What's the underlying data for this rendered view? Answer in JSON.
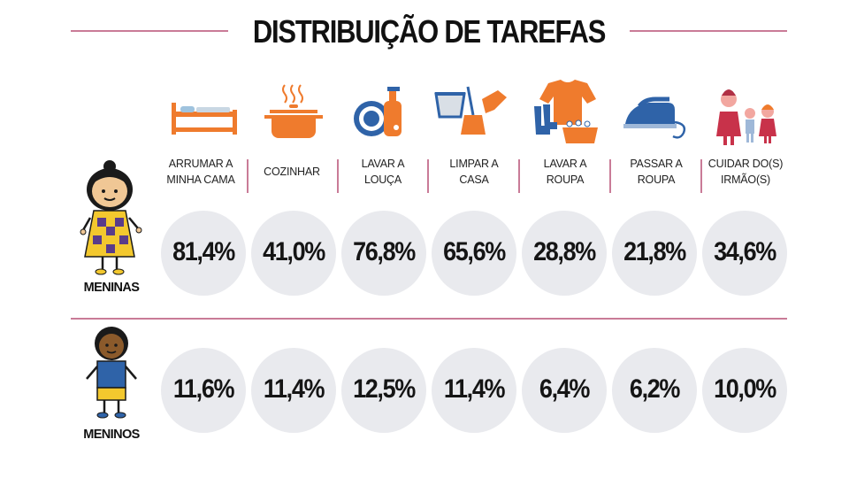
{
  "title": "DISTRIBUIÇÃO DE TAREFAS",
  "colors": {
    "accent_line": "#c97b97",
    "icon_orange": "#ef7b2d",
    "icon_blue": "#2f63a8",
    "circle_bg": "#e9eaee"
  },
  "groups": [
    {
      "label": "MENINAS"
    },
    {
      "label": "MENINOS"
    }
  ],
  "tasks": [
    {
      "label_line1": "ARRUMAR A",
      "label_line2": "MINHA CAMA",
      "icon": "bed-icon"
    },
    {
      "label_line1": "COZINHAR",
      "label_line2": "",
      "icon": "pot-icon"
    },
    {
      "label_line1": "LAVAR A",
      "label_line2": "LOUÇA",
      "icon": "dishes-icon"
    },
    {
      "label_line1": "LIMPAR A",
      "label_line2": "CASA",
      "icon": "cleaning-icon"
    },
    {
      "label_line1": "LAVAR A",
      "label_line2": "ROUPA",
      "icon": "laundry-icon"
    },
    {
      "label_line1": "PASSAR A",
      "label_line2": "ROUPA",
      "icon": "iron-icon"
    },
    {
      "label_line1": "CUIDAR DO(S)",
      "label_line2": "IRMÃO(S)",
      "icon": "siblings-icon"
    }
  ],
  "chart_data": {
    "type": "table",
    "categories": [
      "ARRUMAR A MINHA CAMA",
      "COZINHAR",
      "LAVAR A LOUÇA",
      "LIMPAR A CASA",
      "LAVAR A ROUPA",
      "PASSAR A ROUPA",
      "CUIDAR DO(S) IRMÃO(S)"
    ],
    "series": [
      {
        "name": "MENINAS",
        "values": [
          81.4,
          41.0,
          76.8,
          65.6,
          28.8,
          21.8,
          34.6
        ],
        "labels": [
          "81,4%",
          "41,0%",
          "76,8%",
          "65,6%",
          "28,8%",
          "21,8%",
          "34,6%"
        ]
      },
      {
        "name": "MENINOS",
        "values": [
          11.6,
          11.4,
          12.5,
          11.4,
          6.4,
          6.2,
          10.0
        ],
        "labels": [
          "11,6%",
          "11,4%",
          "12,5%",
          "11,4%",
          "6,4%",
          "6,2%",
          "10,0%"
        ]
      }
    ],
    "unit": "%"
  }
}
